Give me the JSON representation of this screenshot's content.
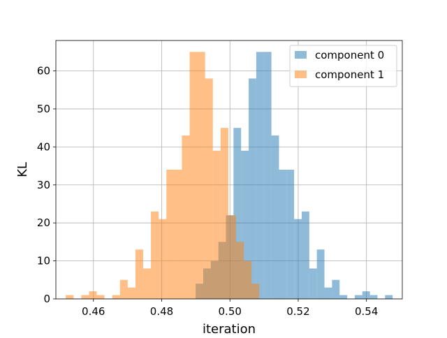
{
  "chart_data": {
    "type": "bar",
    "subtype": "overlaid-histogram",
    "xlabel": "iteration",
    "ylabel": "KL",
    "xlim": [
      0.449,
      0.5505
    ],
    "ylim": [
      0,
      68
    ],
    "xticks": [
      0.46,
      0.48,
      0.5,
      0.52,
      0.54
    ],
    "xtick_labels": [
      "0.46",
      "0.48",
      "0.50",
      "0.52",
      "0.54"
    ],
    "yticks": [
      0,
      10,
      20,
      30,
      40,
      50,
      60
    ],
    "ytick_labels": [
      "0",
      "10",
      "20",
      "30",
      "40",
      "50",
      "60"
    ],
    "grid": true,
    "legend_position": "top-right",
    "series": [
      {
        "name": "component 0",
        "color": "#1f77b4",
        "opacity": 0.5,
        "bin_start": 0.48995,
        "bin_width": 0.00222,
        "counts": [
          4,
          8,
          10,
          15,
          22,
          45,
          39,
          58,
          65,
          65,
          43,
          34,
          34,
          21,
          23,
          8,
          13,
          3,
          5,
          1,
          0,
          1,
          2,
          1,
          0,
          1
        ]
      },
      {
        "name": "component 1",
        "color": "#ff7f0e",
        "opacity": 0.5,
        "bin_start": 0.4519,
        "bin_width": 0.002268,
        "counts": [
          1,
          0,
          1,
          2,
          1,
          0,
          1,
          5,
          3,
          13,
          8,
          23,
          21,
          34,
          34,
          43,
          65,
          65,
          58,
          39,
          45,
          22,
          15,
          10,
          4
        ]
      }
    ]
  }
}
